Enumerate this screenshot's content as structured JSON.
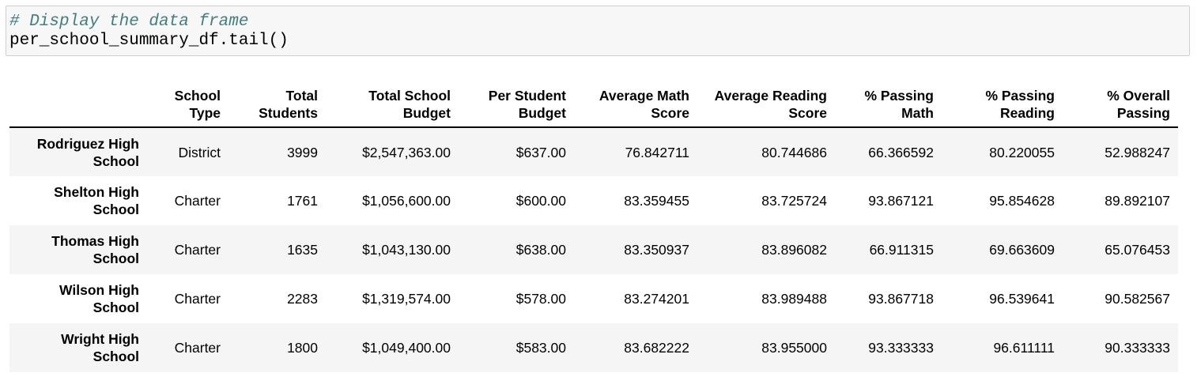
{
  "code": {
    "comment": "# Display the data frame",
    "statement": "per_school_summary_df.tail()"
  },
  "table": {
    "headers": [
      "",
      "School Type",
      "Total Students",
      "Total School Budget",
      "Per Student Budget",
      "Average Math Score",
      "Average Reading Score",
      "% Passing Math",
      "% Passing Reading",
      "% Overall Passing"
    ],
    "rows": [
      [
        "Rodriguez High School",
        "District",
        "3999",
        "$2,547,363.00",
        "$637.00",
        "76.842711",
        "80.744686",
        "66.366592",
        "80.220055",
        "52.988247"
      ],
      [
        "Shelton High School",
        "Charter",
        "1761",
        "$1,056,600.00",
        "$600.00",
        "83.359455",
        "83.725724",
        "93.867121",
        "95.854628",
        "89.892107"
      ],
      [
        "Thomas High School",
        "Charter",
        "1635",
        "$1,043,130.00",
        "$638.00",
        "83.350937",
        "83.896082",
        "66.911315",
        "69.663609",
        "65.076453"
      ],
      [
        "Wilson High School",
        "Charter",
        "2283",
        "$1,319,574.00",
        "$578.00",
        "83.274201",
        "83.989488",
        "93.867718",
        "96.539641",
        "90.582567"
      ],
      [
        "Wright High School",
        "Charter",
        "1800",
        "$1,049,400.00",
        "$583.00",
        "83.682222",
        "83.955000",
        "93.333333",
        "96.611111",
        "90.333333"
      ]
    ]
  }
}
